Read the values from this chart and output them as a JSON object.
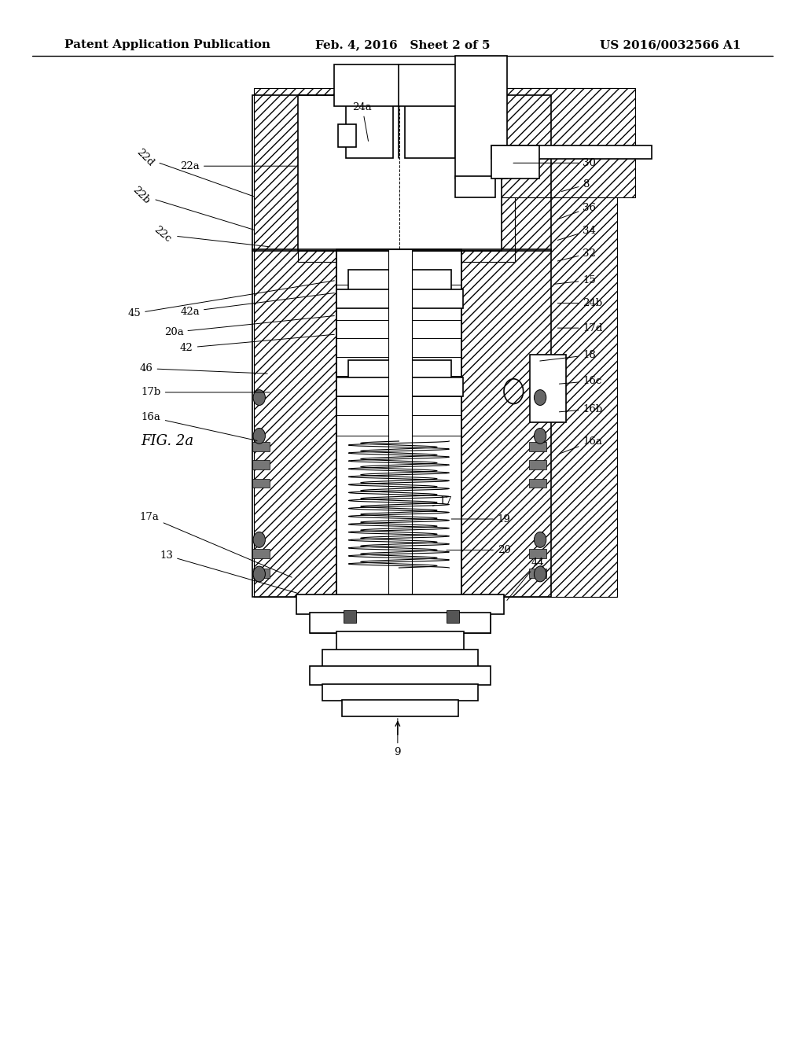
{
  "background_color": "#ffffff",
  "header_left": "Patent Application Publication",
  "header_center": "Feb. 4, 2016   Sheet 2 of 5",
  "header_right": "US 2016/0032566 A1",
  "figure_label": "FIG. 2a",
  "header_font_size": 11,
  "figure_label_font_size": 13,
  "label_font_size": 9.5,
  "diagram": {
    "line_color": "#000000",
    "line_width": 1.2
  }
}
